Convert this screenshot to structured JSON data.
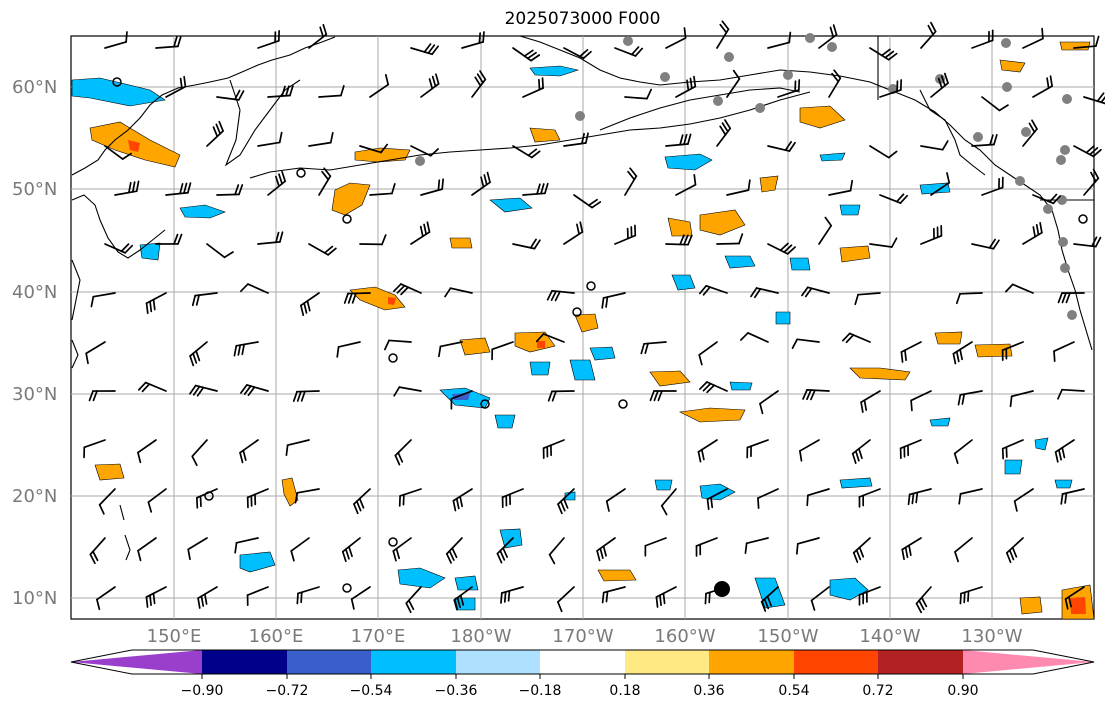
{
  "title": "2025073000 F000",
  "lat_labels": [
    "60°N",
    "50°N",
    "40°N",
    "30°N",
    "20°N",
    "10°N"
  ],
  "lon_labels": [
    "150°E",
    "160°E",
    "170°E",
    "180°W",
    "170°W",
    "160°W",
    "150°W",
    "140°W",
    "130°W"
  ],
  "colorbar": {
    "tick_labels": [
      "−0.90",
      "−0.72",
      "−0.54",
      "−0.36",
      "−0.18",
      "0.18",
      "0.36",
      "0.54",
      "0.72",
      "0.90"
    ],
    "colors": [
      "#9a3fcc",
      "#00008b",
      "#3a5fcd",
      "#00bfff",
      "#aee0ff",
      "#ffffff",
      "#ffe983",
      "#ffa500",
      "#ff4500",
      "#b22222",
      "#ff8ab0"
    ]
  },
  "colors": {
    "coastline": "#000000",
    "gridline": "#aaaaaa",
    "station": "#808080",
    "barb": "#000000"
  }
}
